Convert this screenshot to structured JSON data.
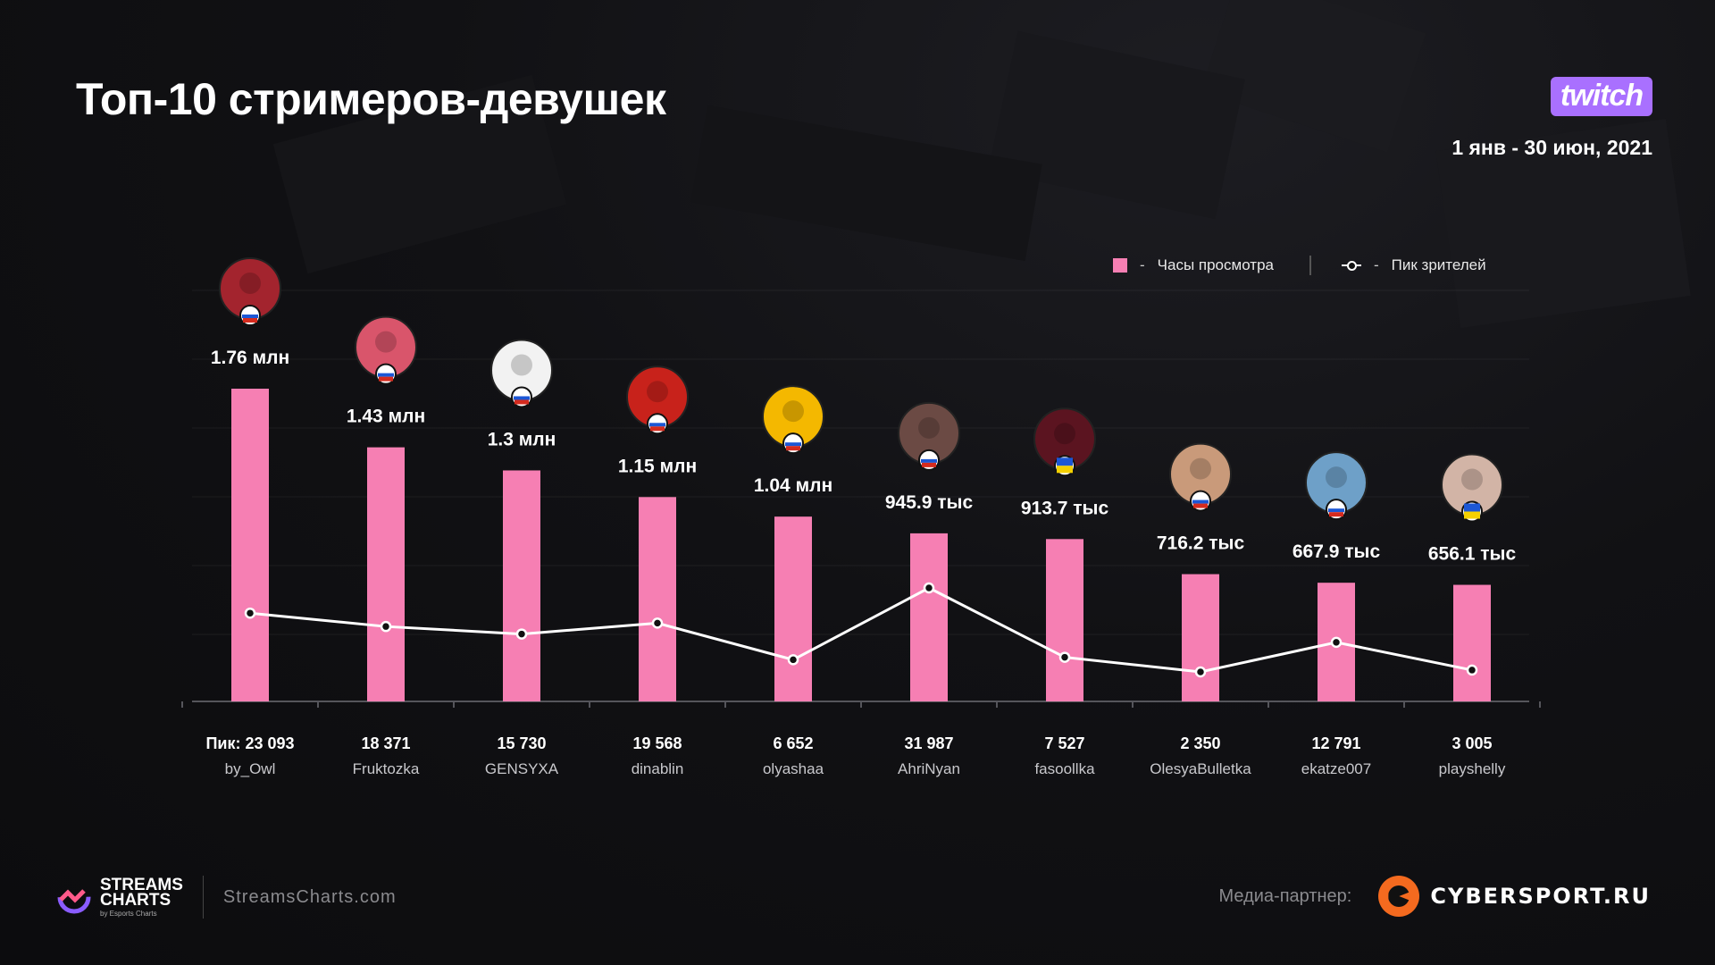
{
  "header": {
    "title": "Топ-10 стримеров-девушек",
    "date_range": "1 янв - 30 июн, 2021",
    "platform_logo": "twitch"
  },
  "legend": {
    "bar_label": "Часы просмотра",
    "line_label": "Пик зрителей"
  },
  "chart_data": {
    "type": "bar",
    "title": "Топ-10 стримеров-девушек",
    "categories": [
      "by_Owl",
      "Fruktozka",
      "GENSYXA",
      "dinablin",
      "olyashaa",
      "AhriNyan",
      "fasoollka",
      "OlesyaBulletka",
      "ekatze007",
      "playshelly"
    ],
    "series": [
      {
        "name": "Часы просмотра",
        "type": "bar",
        "values": [
          1760000,
          1430000,
          1300000,
          1150000,
          1040000,
          945900,
          913700,
          716200,
          667900,
          656100
        ],
        "labels": [
          "1.76 млн",
          "1.43 млн",
          "1.3 млн",
          "1.15 млн",
          "1.04 млн",
          "945.9 тыс",
          "913.7 тыс",
          "716.2 тыс",
          "667.9 тыс",
          "656.1 тыс"
        ],
        "color": "#f67fb3"
      },
      {
        "name": "Пик зрителей",
        "type": "line",
        "values": [
          23093,
          18371,
          15730,
          19568,
          6652,
          31987,
          7527,
          2350,
          12791,
          3005
        ],
        "labels": [
          "Пик: 23 093",
          "18 371",
          "15 730",
          "19 568",
          "6 652",
          "31 987",
          "7 527",
          "2 350",
          "12 791",
          "3 005"
        ],
        "color": "#ffffff"
      }
    ],
    "flags": [
      "ru",
      "ru",
      "ru",
      "ru",
      "ru",
      "ru",
      "ua",
      "ru",
      "ru",
      "ua"
    ],
    "avatar_colors": [
      "#a3242e",
      "#d9556b",
      "#f2f2f2",
      "#c8221b",
      "#f4b800",
      "#6b4a44",
      "#5b1420",
      "#c99a7a",
      "#6ea0c8",
      "#d2b4a6"
    ],
    "grid": true,
    "legend_position": "top-right"
  },
  "footer": {
    "brand_line1": "STREAMS",
    "brand_line2": "CHARTS",
    "brand_sub": "by Esports Charts",
    "url": "StreamsCharts.com",
    "partner_label": "Медиа-партнер:",
    "partner_name": "CYBERSPORT.RU"
  }
}
